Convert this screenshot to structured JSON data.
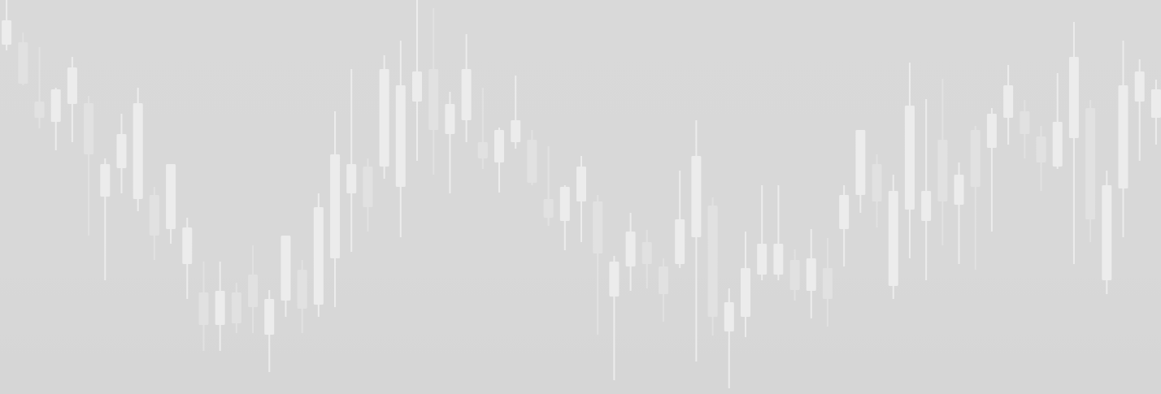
{
  "chart_data": {
    "type": "candlestick",
    "categories": [
      null,
      null,
      null,
      null,
      null,
      null,
      null,
      null,
      null,
      null,
      null,
      null,
      null,
      null,
      null,
      null,
      null,
      null,
      null,
      null,
      null,
      null,
      null,
      null,
      null,
      null,
      null,
      null,
      null,
      null,
      null,
      null,
      null,
      null,
      null,
      null,
      null,
      null,
      null,
      null,
      null,
      null,
      null,
      null,
      null,
      null,
      null,
      null,
      null,
      null,
      null,
      null,
      null,
      null,
      null,
      null,
      null,
      null,
      null,
      null,
      null,
      null,
      null,
      null,
      null,
      null,
      null,
      null,
      null,
      null,
      null
    ],
    "open": [
      430,
      433,
      360,
      335,
      357,
      358,
      243,
      278,
      240,
      245,
      203,
      160,
      125,
      85,
      125,
      147,
      73,
      115,
      153,
      110,
      167,
      247,
      280,
      280,
      255,
      360,
      400,
      320,
      337,
      310,
      285,
      310,
      313,
      240,
      213,
      237,
      237,
      120,
      157,
      187,
      157,
      160,
      193,
      232,
      77,
      95,
      147,
      147,
      165,
      127,
      155,
      203,
      245,
      283,
      133,
      227,
      213,
      313,
      233,
      325,
      303,
      340,
      348,
      317,
      280,
      315,
      352,
      140,
      253,
      360,
      340
    ],
    "high": [
      485,
      445,
      427,
      377,
      415,
      367,
      290,
      345,
      377,
      255,
      283,
      217,
      163,
      163,
      137,
      183,
      128,
      195,
      165,
      247,
      348,
      400,
      290,
      417,
      435,
      485,
      475,
      372,
      443,
      377,
      328,
      392,
      325,
      305,
      257,
      293,
      245,
      170,
      223,
      202,
      167,
      275,
      337,
      242,
      130,
      200,
      257,
      257,
      178,
      203,
      192,
      257,
      325,
      295,
      270,
      408,
      363,
      388,
      285,
      330,
      352,
      405,
      362,
      330,
      395,
      458,
      362,
      275,
      435,
      412,
      387
    ],
    "low": [
      423,
      380,
      327,
      300,
      310,
      195,
      140,
      247,
      225,
      165,
      185,
      117,
      53,
      53,
      75,
      75,
      27,
      95,
      75,
      95,
      107,
      175,
      200,
      265,
      193,
      287,
      270,
      247,
      310,
      277,
      248,
      302,
      257,
      207,
      177,
      187,
      73,
      17,
      127,
      130,
      89,
      155,
      40,
      72,
      7,
      70,
      140,
      140,
      115,
      93,
      83,
      157,
      223,
      205,
      117,
      167,
      140,
      183,
      160,
      153,
      200,
      307,
      290,
      250,
      277,
      160,
      187,
      123,
      193,
      287,
      307
    ],
    "close": [
      460,
      382,
      340,
      375,
      402,
      295,
      283,
      320,
      358,
      195,
      283,
      205,
      85,
      127,
      87,
      107,
      117,
      195,
      105,
      230,
      295,
      283,
      230,
      400,
      380,
      397,
      325,
      357,
      400,
      290,
      325,
      337,
      260,
      217,
      255,
      280,
      173,
      163,
      200,
      160,
      123,
      215,
      293,
      95,
      113,
      155,
      185,
      185,
      128,
      167,
      117,
      245,
      325,
      237,
      250,
      355,
      250,
      237,
      270,
      255,
      345,
      380,
      320,
      285,
      335,
      415,
      215,
      257,
      380,
      397,
      375
    ],
    "ylim": [
      0,
      485
    ],
    "up_color": "#ececec",
    "down_color": "#e1e1e1"
  }
}
